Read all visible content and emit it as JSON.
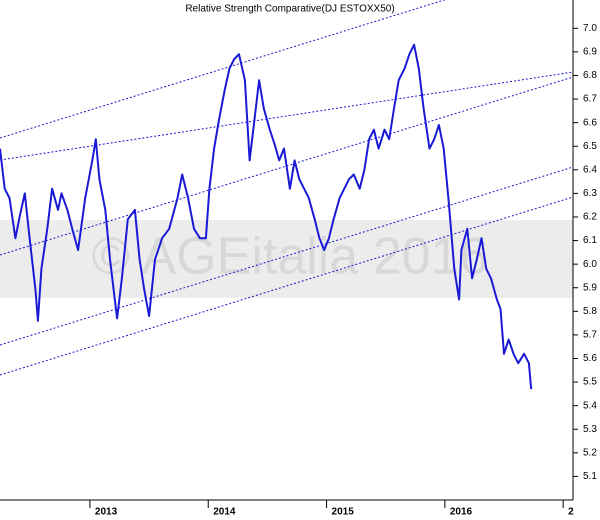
{
  "chart_data": {
    "type": "line",
    "title": "Relative Strength Comparative(DJ ESTOXX50)",
    "watermark": "© AGEitalia 2016",
    "x": [
      2012.24,
      2012.28,
      2012.32,
      2012.37,
      2012.41,
      2012.45,
      2012.49,
      2012.54,
      2012.56,
      2012.59,
      2012.64,
      2012.68,
      2012.73,
      2012.76,
      2012.81,
      2012.85,
      2012.9,
      2012.96,
      2013.02,
      2013.05,
      2013.08,
      2013.13,
      2013.17,
      2013.21,
      2013.23,
      2013.27,
      2013.32,
      2013.38,
      2013.42,
      2013.46,
      2013.5,
      2013.55,
      2013.61,
      2013.67,
      2013.74,
      2013.78,
      2013.83,
      2013.88,
      2013.93,
      2013.98,
      2014.01,
      2014.05,
      2014.09,
      2014.14,
      2014.18,
      2014.22,
      2014.26,
      2014.31,
      2014.35,
      2014.39,
      2014.43,
      2014.47,
      2014.52,
      2014.56,
      2014.6,
      2014.64,
      2014.69,
      2014.73,
      2014.77,
      2014.81,
      2014.85,
      2014.9,
      2014.94,
      2014.98,
      2015.02,
      2015.06,
      2015.11,
      2015.15,
      2015.19,
      2015.23,
      2015.28,
      2015.32,
      2015.36,
      2015.4,
      2015.44,
      2015.49,
      2015.53,
      2015.57,
      2015.61,
      2015.66,
      2015.7,
      2015.74,
      2015.78,
      2015.82,
      2015.87,
      2015.91,
      2015.95,
      2015.99,
      2016.03,
      2016.08,
      2016.12,
      2016.14,
      2016.19,
      2016.23,
      2016.27,
      2016.31,
      2016.35,
      2016.39,
      2016.44,
      2016.47,
      2016.5,
      2016.54,
      2016.58,
      2016.62,
      2016.67,
      2016.71,
      2016.73
    ],
    "series": [
      {
        "color": "#1a1ad6",
        "values": [
          6.49,
          6.32,
          6.28,
          6.11,
          6.21,
          6.3,
          6.11,
          5.89,
          5.76,
          5.98,
          6.15,
          6.32,
          6.23,
          6.3,
          6.23,
          6.15,
          6.06,
          6.28,
          6.44,
          6.53,
          6.36,
          6.23,
          6.02,
          5.85,
          5.77,
          5.94,
          6.19,
          6.23,
          6.02,
          5.89,
          5.78,
          6.02,
          6.11,
          6.15,
          6.28,
          6.38,
          6.28,
          6.15,
          6.11,
          6.11,
          6.32,
          6.49,
          6.61,
          6.74,
          6.83,
          6.87,
          6.89,
          6.78,
          6.44,
          6.61,
          6.78,
          6.66,
          6.57,
          6.51,
          6.44,
          6.49,
          6.32,
          6.44,
          6.36,
          6.32,
          6.28,
          6.19,
          6.11,
          6.06,
          6.11,
          6.19,
          6.28,
          6.32,
          6.36,
          6.38,
          6.32,
          6.4,
          6.53,
          6.57,
          6.49,
          6.57,
          6.53,
          6.66,
          6.78,
          6.83,
          6.89,
          6.93,
          6.83,
          6.66,
          6.49,
          6.53,
          6.59,
          6.49,
          6.28,
          5.98,
          5.85,
          6.06,
          6.15,
          5.94,
          6.02,
          6.11,
          5.98,
          5.94,
          5.85,
          5.81,
          5.62,
          5.68,
          5.62,
          5.58,
          5.62,
          5.58,
          5.47
        ]
      }
    ],
    "xlim": [
      2012.24,
      2017.1
    ],
    "xticks": [
      2013,
      2014,
      2015,
      2016,
      {
        "value": 2017,
        "label": "2"
      }
    ],
    "ylim": [
      5.0,
      7.12
    ],
    "yticks": [
      5.1,
      5.2,
      5.3,
      5.4,
      5.5,
      5.6,
      5.7,
      5.8,
      5.9,
      {
        "value": 6,
        "label": "6.0"
      },
      6.1,
      6.2,
      6.3,
      6.4,
      6.5,
      6.6,
      6.7,
      6.8,
      6.9,
      {
        "value": 7,
        "label": "7.0"
      }
    ]
  }
}
